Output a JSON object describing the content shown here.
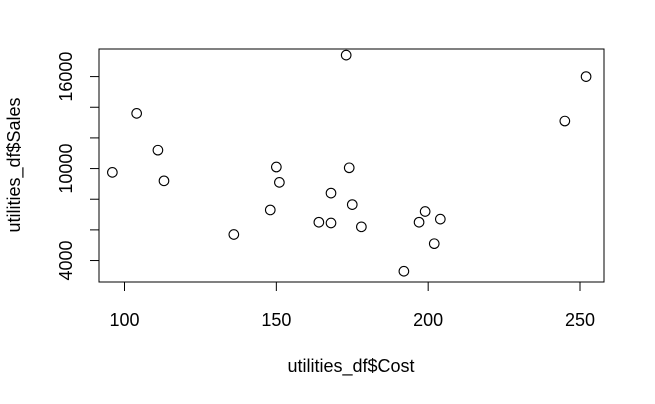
{
  "chart_data": {
    "type": "scatter",
    "title": "",
    "xlabel": "utilities_df$Cost",
    "ylabel": "utilities_df$Sales",
    "xlim": [
      91.6,
      257.9
    ],
    "ylim": [
      2600,
      17800
    ],
    "x_ticks": [
      100,
      150,
      200,
      250
    ],
    "x_tick_labels": [
      "100",
      "150",
      "200",
      "250"
    ],
    "y_ticks": [
      4000,
      6000,
      8000,
      10000,
      12000,
      14000,
      16000
    ],
    "y_tick_labels": [
      "4000",
      "",
      "",
      "10000",
      "",
      "",
      "16000"
    ],
    "grid": false,
    "points": [
      {
        "x": 96,
        "y": 9750
      },
      {
        "x": 104,
        "y": 13600
      },
      {
        "x": 111,
        "y": 11200
      },
      {
        "x": 113,
        "y": 9200
      },
      {
        "x": 136,
        "y": 5700
      },
      {
        "x": 148,
        "y": 7300
      },
      {
        "x": 150,
        "y": 10100
      },
      {
        "x": 151,
        "y": 9100
      },
      {
        "x": 164,
        "y": 6500
      },
      {
        "x": 168,
        "y": 8400
      },
      {
        "x": 168,
        "y": 6450
      },
      {
        "x": 173,
        "y": 17400
      },
      {
        "x": 174,
        "y": 10050
      },
      {
        "x": 175,
        "y": 7650
      },
      {
        "x": 178,
        "y": 6200
      },
      {
        "x": 192,
        "y": 3300
      },
      {
        "x": 197,
        "y": 6500
      },
      {
        "x": 199,
        "y": 7200
      },
      {
        "x": 202,
        "y": 5100
      },
      {
        "x": 204,
        "y": 6700
      },
      {
        "x": 245,
        "y": 13100
      },
      {
        "x": 252,
        "y": 16000
      }
    ]
  }
}
